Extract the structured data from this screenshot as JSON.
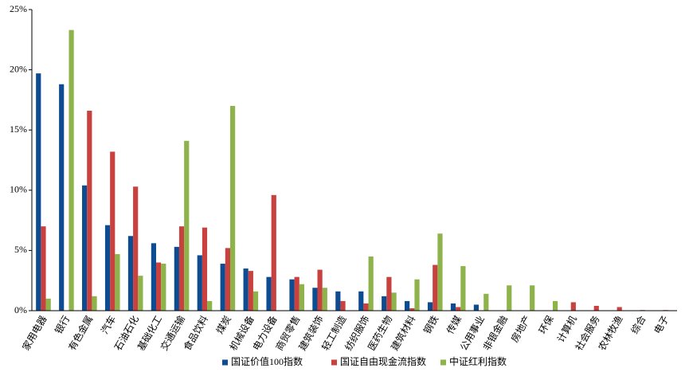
{
  "chart_data": {
    "type": "bar",
    "categories": [
      "家用电器",
      "银行",
      "有色金属",
      "汽车",
      "石油石化",
      "基础化工",
      "交通运输",
      "食品饮料",
      "煤炭",
      "机械设备",
      "电力设备",
      "商贸零售",
      "建筑装饰",
      "轻工制造",
      "纺织服饰",
      "医药生物",
      "建筑材料",
      "钢铁",
      "传媒",
      "公用事业",
      "非银金融",
      "房地产",
      "环保",
      "计算机",
      "社会服务",
      "农林牧渔",
      "综合",
      "电子"
    ],
    "series": [
      {
        "name": "国证价值100指数",
        "color": "#0e4c92",
        "values": [
          19.7,
          18.8,
          10.4,
          7.1,
          6.2,
          5.6,
          5.3,
          4.6,
          3.9,
          3.5,
          2.8,
          2.6,
          1.9,
          1.6,
          1.6,
          1.2,
          0.8,
          0.7,
          0.6,
          0.5,
          0,
          0,
          0,
          0,
          0,
          0,
          0,
          0
        ]
      },
      {
        "name": "国证自由现金流指数",
        "color": "#c9413f",
        "values": [
          7.0,
          0,
          16.6,
          13.2,
          10.3,
          4.0,
          7.0,
          6.9,
          5.2,
          3.3,
          9.6,
          2.8,
          3.4,
          0.8,
          0.6,
          2.8,
          0.2,
          3.8,
          0.3,
          0,
          0,
          0,
          0,
          0.7,
          0.4,
          0.3,
          0.05,
          0.05
        ]
      },
      {
        "name": "中证红利指数",
        "color": "#8db34a",
        "values": [
          1.0,
          23.3,
          1.2,
          4.7,
          2.9,
          3.9,
          14.1,
          0.8,
          17.0,
          1.6,
          0,
          2.2,
          1.9,
          0,
          4.5,
          1.5,
          2.6,
          6.4,
          3.7,
          1.4,
          2.1,
          2.1,
          0.8,
          0,
          0,
          0,
          0,
          0
        ]
      }
    ],
    "ylim": [
      0,
      25
    ],
    "yticks": [
      {
        "value": 0,
        "label": "0%"
      },
      {
        "value": 5,
        "label": "5%"
      },
      {
        "value": 10,
        "label": "10%"
      },
      {
        "value": 15,
        "label": "15%"
      },
      {
        "value": 20,
        "label": "20%"
      },
      {
        "value": 25,
        "label": "25%"
      }
    ],
    "grid": false,
    "legend": "bottom"
  }
}
